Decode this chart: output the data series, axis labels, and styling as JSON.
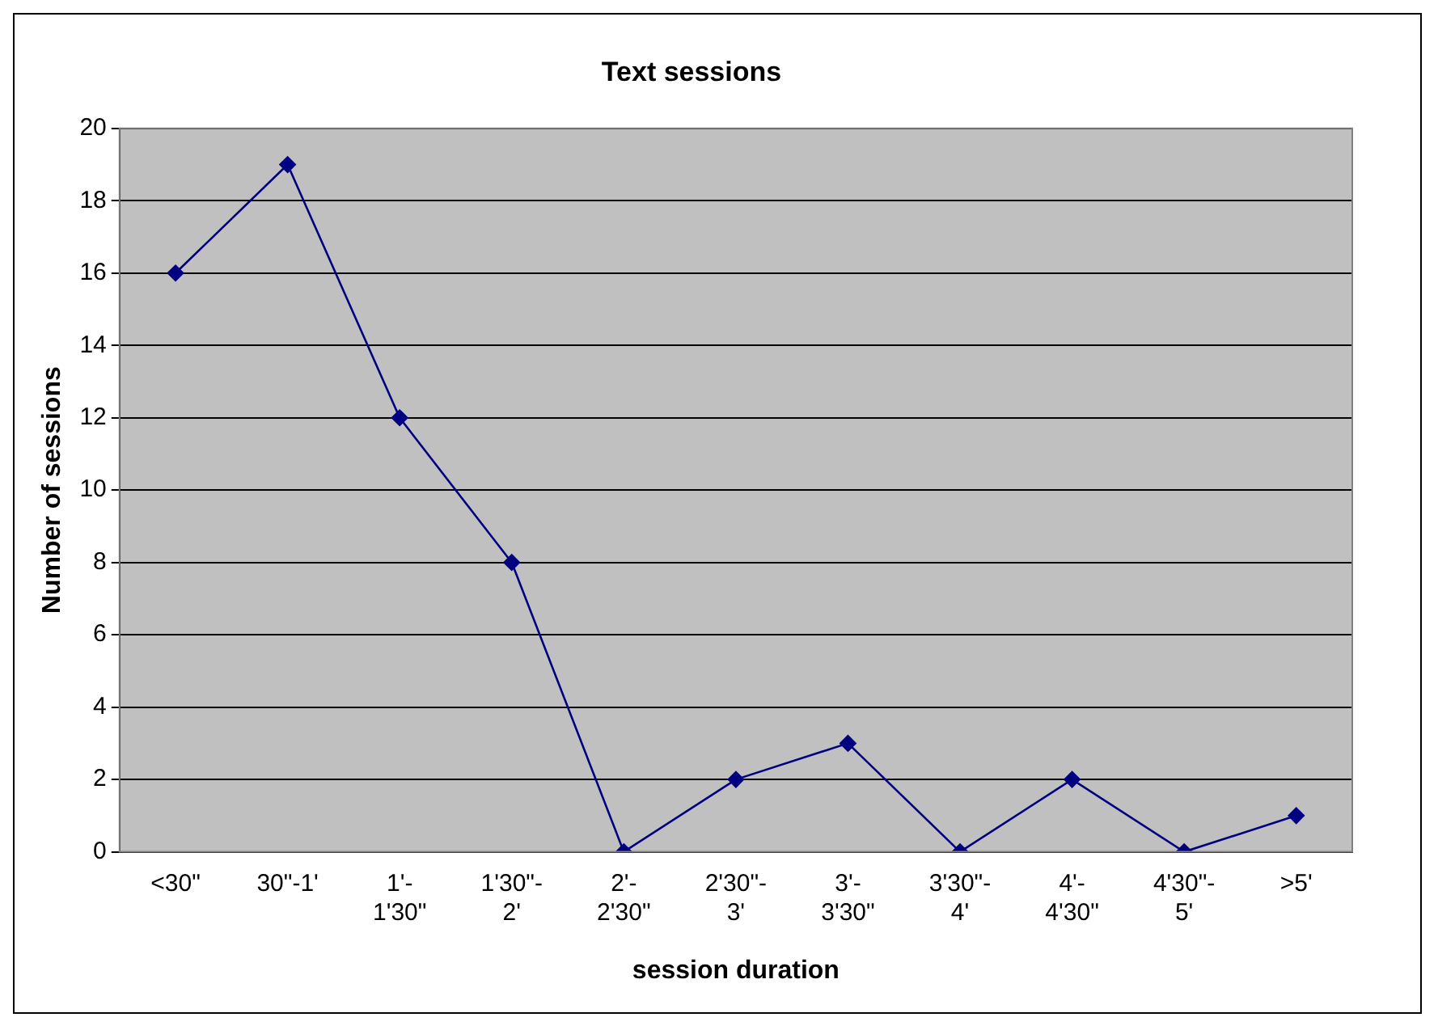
{
  "chart_data": {
    "type": "line",
    "title": "Text sessions",
    "xlabel": "session duration",
    "ylabel": "Number of sessions",
    "categories": [
      "<30\"",
      "30\"-1'",
      "1'-1'30\"",
      "1'30\"-2'",
      "2'-2'30\"",
      "2'30\"-3'",
      "3'-3'30\"",
      "3'30\"-4'",
      "4'-4'30\"",
      "4'30\"-5'",
      ">5'"
    ],
    "series": [
      {
        "color": "#000080",
        "values": [
          16,
          19,
          12,
          8,
          0,
          2,
          3,
          0,
          2,
          0,
          1
        ]
      }
    ],
    "ylim": [
      0,
      20
    ],
    "yticks": [
      0,
      2,
      4,
      6,
      8,
      10,
      12,
      14,
      16,
      18,
      20
    ],
    "grid": "y",
    "legend": false,
    "marker": "diamond",
    "line_style": "solid"
  }
}
